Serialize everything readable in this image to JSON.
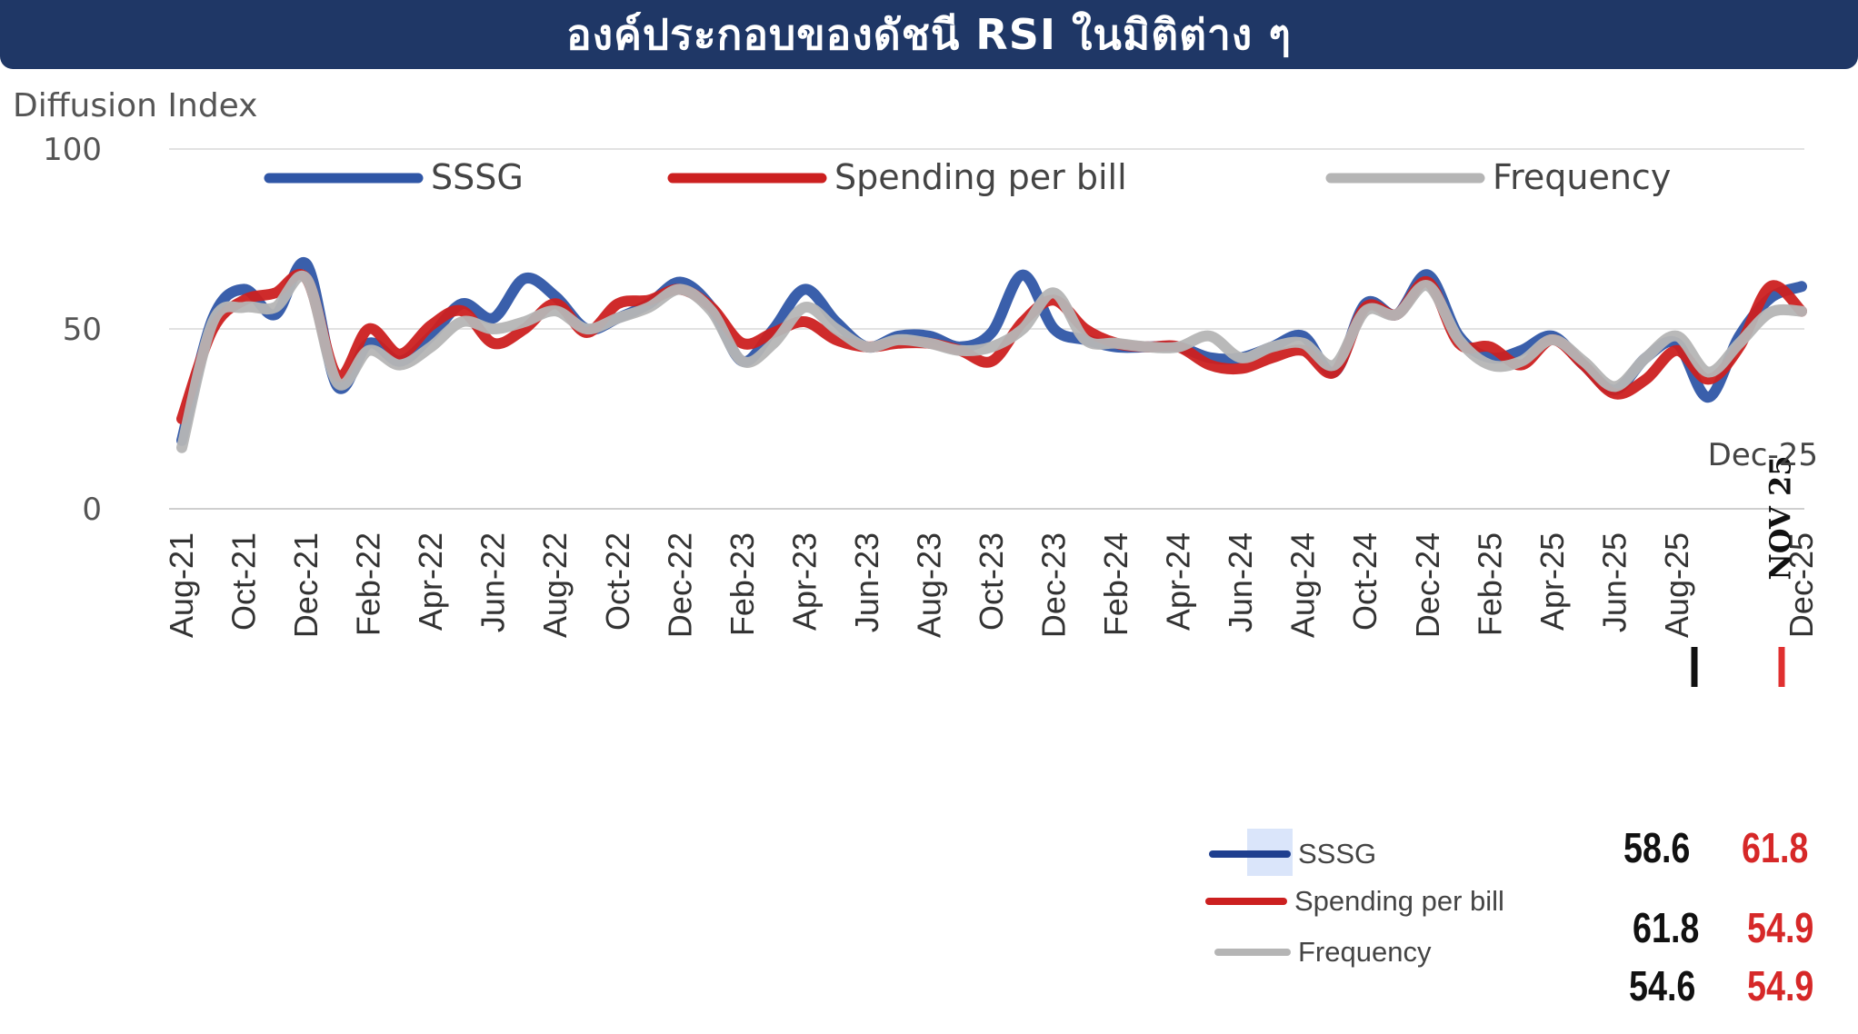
{
  "header": {
    "title": "องค์ประกอบของดัชนี RSI ในมิติต่าง ๆ"
  },
  "colors": {
    "banner": "#1f3766",
    "SSSG": "#2f56a6",
    "Spending per bill": "#cc2020",
    "Frequency": "#b5b5b5",
    "arrow_black": "#111111",
    "arrow_red": "#e03030"
  },
  "chart_data": {
    "type": "line",
    "ylabel": "Diffusion Index",
    "ylim": [
      0,
      100
    ],
    "yticks": [
      0,
      50,
      100
    ],
    "grid": "horizontal",
    "legend_position": "top",
    "annotations": {
      "last_point": "Dec-25",
      "marker": "NOV 25"
    },
    "x": [
      "Aug-21",
      "Sep-21",
      "Oct-21",
      "Nov-21",
      "Dec-21",
      "Jan-22",
      "Feb-22",
      "Mar-22",
      "Apr-22",
      "May-22",
      "Jun-22",
      "Jul-22",
      "Aug-22",
      "Sep-22",
      "Oct-22",
      "Nov-22",
      "Dec-22",
      "Jan-23",
      "Feb-23",
      "Mar-23",
      "Apr-23",
      "May-23",
      "Jun-23",
      "Jul-23",
      "Aug-23",
      "Sep-23",
      "Oct-23",
      "Nov-23",
      "Dec-23",
      "Jan-24",
      "Feb-24",
      "Mar-24",
      "Apr-24",
      "May-24",
      "Jun-24",
      "Jul-24",
      "Aug-24",
      "Sep-24",
      "Oct-24",
      "Nov-24",
      "Dec-24",
      "Jan-25",
      "Feb-25",
      "Mar-25",
      "Apr-25",
      "May-25",
      "Jun-25",
      "Jul-25",
      "Aug-25",
      "Sep-25",
      "Oct-25",
      "Nov-25",
      "Dec-25"
    ],
    "xtick_labels": [
      "Aug-21",
      "Oct-21",
      "Dec-21",
      "Feb-22",
      "Apr-22",
      "Jun-22",
      "Aug-22",
      "Oct-22",
      "Dec-22",
      "Feb-23",
      "Apr-23",
      "Jun-23",
      "Aug-23",
      "Oct-23",
      "Dec-23",
      "Feb-24",
      "Apr-24",
      "Jun-24",
      "Aug-24",
      "Oct-24",
      "Dec-24",
      "Feb-25",
      "Apr-25",
      "Jun-25",
      "Aug-25",
      "Dec-25"
    ],
    "series": [
      {
        "name": "SSSG",
        "values": [
          19,
          53,
          61,
          54,
          68,
          34,
          46,
          41,
          48,
          57,
          53,
          64,
          59,
          50,
          53,
          57,
          63,
          56,
          41,
          50,
          61,
          52,
          45,
          48,
          48,
          45,
          49,
          65,
          50,
          47,
          45,
          45,
          45,
          42,
          42,
          45,
          48,
          38,
          57,
          54,
          65,
          48,
          42,
          44,
          48,
          40,
          33,
          42,
          46,
          31,
          48,
          58.6,
          61.8
        ]
      },
      {
        "name": "Spending per bill",
        "values": [
          25,
          50,
          58,
          60,
          64,
          37,
          50,
          43,
          51,
          55,
          46,
          50,
          57,
          49,
          57,
          58,
          61,
          56,
          46,
          49,
          52,
          47,
          45,
          46,
          46,
          44,
          41,
          52,
          58,
          50,
          46,
          45,
          45,
          40,
          39,
          42,
          44,
          38,
          56,
          54,
          63,
          46,
          45,
          40,
          47,
          40,
          32,
          36,
          44,
          36,
          45,
          61.8,
          54.9
        ]
      },
      {
        "name": "Frequency",
        "values": [
          17,
          52,
          56,
          56,
          64,
          35,
          44,
          40,
          45,
          52,
          50,
          52,
          55,
          50,
          53,
          56,
          61,
          55,
          41,
          46,
          56,
          50,
          45,
          47,
          46,
          44,
          45,
          50,
          60,
          47,
          46,
          45,
          45,
          48,
          42,
          45,
          46,
          40,
          55,
          54,
          62,
          47,
          40,
          41,
          47,
          41,
          34,
          42,
          48,
          38,
          46,
          54.6,
          54.9
        ]
      }
    ],
    "comparison": {
      "labels": [
        "SSSG",
        "Spending per bill",
        "Frequency"
      ],
      "nov25": [
        58.6,
        61.8,
        54.6
      ],
      "dec25": [
        61.8,
        54.9,
        54.9
      ],
      "nov25_display": [
        "58.6",
        "61.8",
        "54.6"
      ],
      "dec25_display": [
        "61.8",
        "54.9",
        "54.9"
      ]
    }
  }
}
